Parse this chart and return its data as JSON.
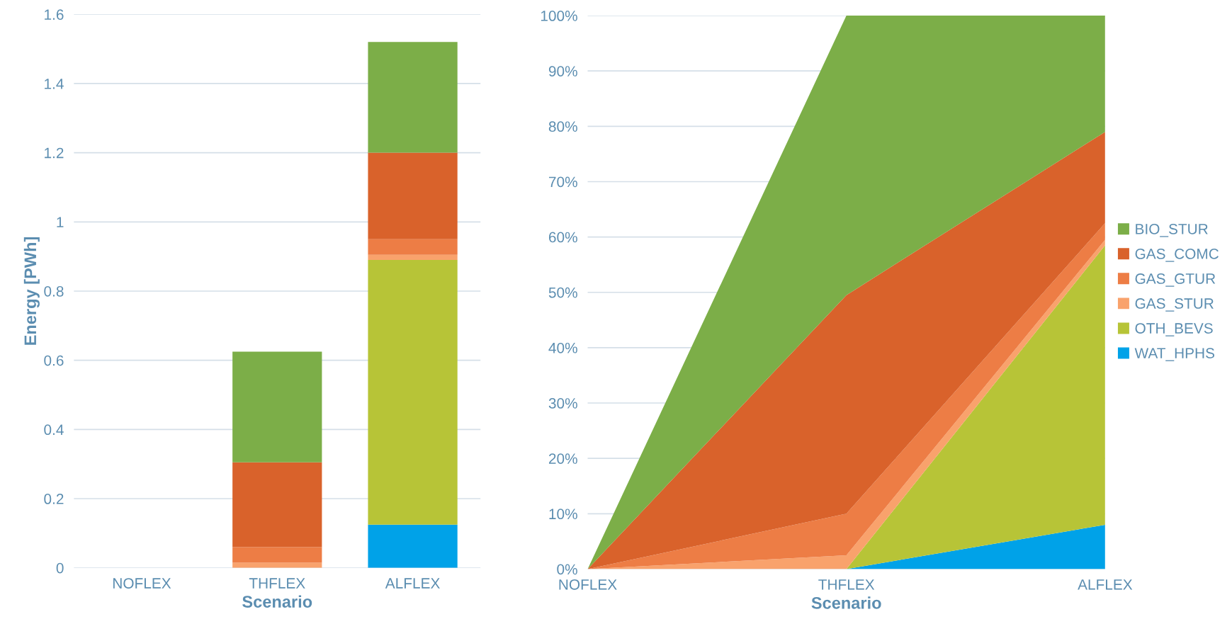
{
  "chart_data": [
    {
      "type": "bar",
      "stacked": true,
      "xlabel": "Scenario",
      "ylabel": "Energy [PWh]",
      "categories": [
        "NOFLEX",
        "THFLEX",
        "ALFLEX"
      ],
      "series": [
        {
          "color": "#00a2e8",
          "values": [
            0,
            0,
            0.125
          ]
        },
        {
          "color": "#b7c437",
          "values": [
            0,
            0,
            0.765
          ]
        },
        {
          "color": "#f9a26c",
          "values": [
            0,
            0.015,
            0.015
          ]
        },
        {
          "color": "#ed7d45",
          "values": [
            0,
            0.045,
            0.045
          ]
        },
        {
          "color": "#d9622b",
          "values": [
            0,
            0.245,
            0.25
          ]
        },
        {
          "color": "#7cae48",
          "values": [
            0,
            0.32,
            0.32
          ]
        }
      ],
      "ylim": [
        0,
        1.6
      ],
      "yticks": [
        0,
        0.2,
        0.4,
        0.6,
        0.8,
        1,
        1.2,
        1.4,
        1.6
      ],
      "grid": "y",
      "legend": false
    },
    {
      "type": "area",
      "stacked": true,
      "xlabel": "Scenario",
      "categories": [
        "NOFLEX",
        "THFLEX",
        "ALFLEX"
      ],
      "series": [
        {
          "name": "WAT_HPHS",
          "color": "#00a2e8",
          "values": [
            0,
            0,
            8
          ]
        },
        {
          "name": "OTH_BEVS",
          "color": "#b7c437",
          "values": [
            0,
            0,
            50.5
          ]
        },
        {
          "name": "GAS_STUR",
          "color": "#f9a26c",
          "values": [
            0,
            2.5,
            1
          ]
        },
        {
          "name": "GAS_GTUR",
          "color": "#ed7d45",
          "values": [
            0,
            7.5,
            3
          ]
        },
        {
          "name": "GAS_COMC",
          "color": "#d9622b",
          "values": [
            0,
            39.5,
            16.5
          ]
        },
        {
          "name": "BIO_STUR",
          "color": "#7cae48",
          "values": [
            0,
            50.5,
            21
          ]
        }
      ],
      "ylim": [
        0,
        100
      ],
      "yticks": [
        {
          "value": 0,
          "label": "0%"
        },
        {
          "value": 10,
          "label": "10%"
        },
        {
          "value": 20,
          "label": "20%"
        },
        {
          "value": 30,
          "label": "30%"
        },
        {
          "value": 40,
          "label": "40%"
        },
        {
          "value": 50,
          "label": "50%"
        },
        {
          "value": 60,
          "label": "60%"
        },
        {
          "value": 70,
          "label": "70%"
        },
        {
          "value": 80,
          "label": "80%"
        },
        {
          "value": 90,
          "label": "90%"
        },
        {
          "value": 100,
          "label": "100%"
        }
      ],
      "grid": "y",
      "legend": "right"
    }
  ]
}
